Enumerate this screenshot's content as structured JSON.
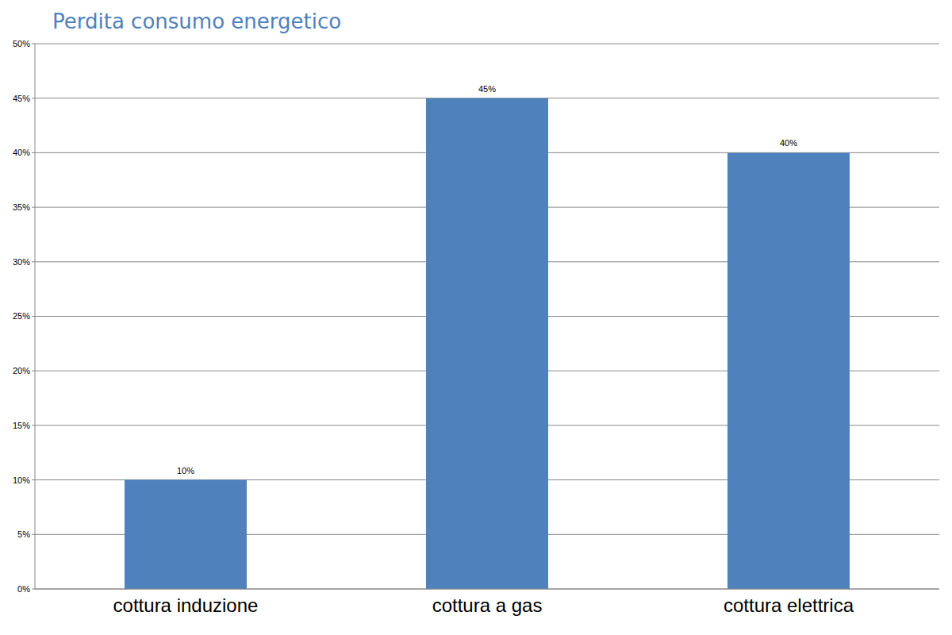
{
  "chart_data": {
    "type": "bar",
    "title": "Perdita consumo energetico",
    "categories": [
      "cottura induzione",
      "cottura a gas",
      "cottura elettrica"
    ],
    "values": [
      10,
      45,
      40
    ],
    "value_labels": [
      "10%",
      "45%",
      "40%"
    ],
    "color": "#4f81bd",
    "ylim": [
      0,
      50
    ],
    "yticks": [
      {
        "value": 0,
        "label": "0%"
      },
      {
        "value": 5,
        "label": "5%"
      },
      {
        "value": 10,
        "label": "10%"
      },
      {
        "value": 15,
        "label": "15%"
      },
      {
        "value": 20,
        "label": "20%"
      },
      {
        "value": 25,
        "label": "25%"
      },
      {
        "value": 30,
        "label": "30%"
      },
      {
        "value": 35,
        "label": "35%"
      },
      {
        "value": 40,
        "label": "40%"
      },
      {
        "value": 45,
        "label": "45%"
      },
      {
        "value": 50,
        "label": "50%"
      }
    ],
    "grid": true,
    "data_labels": true
  }
}
